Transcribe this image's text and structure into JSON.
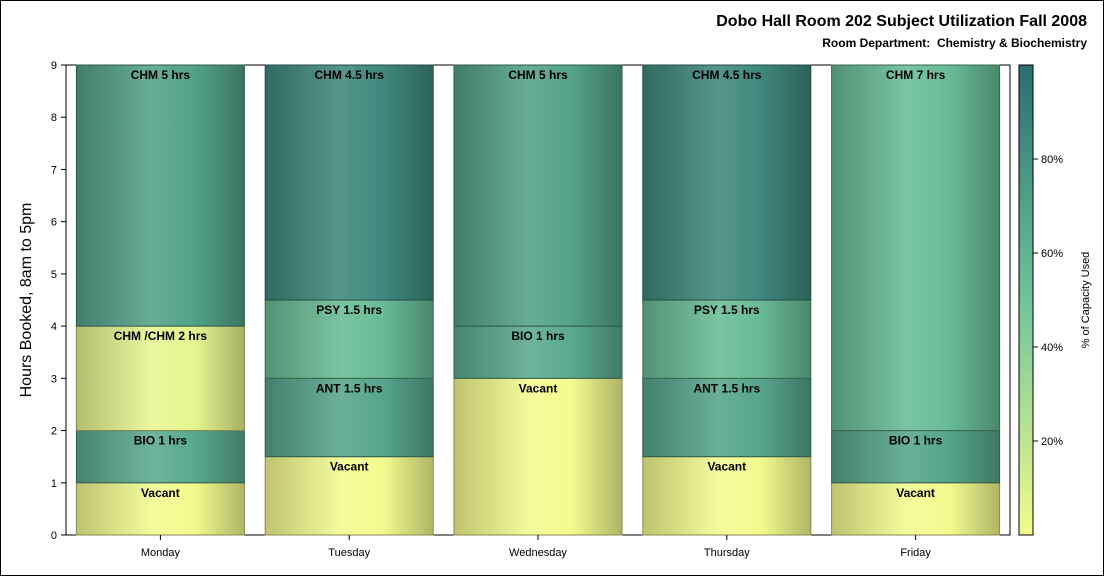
{
  "header": {
    "title": "Dobo Hall Room 202 Subject Utilization Fall 2008",
    "subtitle": "Room Department:  Chemistry & Biochemistry"
  },
  "chart_data": {
    "type": "bar",
    "stacked": true,
    "title": "Dobo Hall Room 202 Subject Utilization Fall 2008",
    "subtitle": "Room Department:  Chemistry & Biochemistry",
    "xlabel": "",
    "ylabel": "Hours Booked, 8am to 5pm",
    "ylim": [
      0,
      9
    ],
    "yticks": [
      0,
      1,
      2,
      3,
      4,
      5,
      6,
      7,
      8,
      9
    ],
    "categories": [
      "Monday",
      "Tuesday",
      "Wednesday",
      "Thursday",
      "Friday"
    ],
    "stacks": [
      {
        "day": "Monday",
        "segments": [
          {
            "label": "Vacant",
            "hours": 1,
            "capacity": 0
          },
          {
            "label": "BIO 1 hrs",
            "hours": 1,
            "capacity": 65
          },
          {
            "label": "CHM /CHM 2 hrs",
            "hours": 2,
            "capacity": 5
          },
          {
            "label": "CHM 5 hrs",
            "hours": 5,
            "capacity": 70
          }
        ]
      },
      {
        "day": "Tuesday",
        "segments": [
          {
            "label": "Vacant",
            "hours": 1.5,
            "capacity": 0
          },
          {
            "label": "ANT 1.5 hrs",
            "hours": 1.5,
            "capacity": 68
          },
          {
            "label": "PSY 1.5 hrs",
            "hours": 1.5,
            "capacity": 55
          },
          {
            "label": "CHM 4.5 hrs",
            "hours": 4.5,
            "capacity": 85
          }
        ]
      },
      {
        "day": "Wednesday",
        "segments": [
          {
            "label": "Vacant",
            "hours": 3,
            "capacity": 0
          },
          {
            "label": "BIO 1 hrs",
            "hours": 1,
            "capacity": 65
          },
          {
            "label": "CHM 5 hrs",
            "hours": 5,
            "capacity": 70
          }
        ]
      },
      {
        "day": "Thursday",
        "segments": [
          {
            "label": "Vacant",
            "hours": 1.5,
            "capacity": 0
          },
          {
            "label": "ANT 1.5 hrs",
            "hours": 1.5,
            "capacity": 68
          },
          {
            "label": "PSY 1.5 hrs",
            "hours": 1.5,
            "capacity": 55
          },
          {
            "label": "CHM 4.5 hrs",
            "hours": 4.5,
            "capacity": 85
          }
        ]
      },
      {
        "day": "Friday",
        "segments": [
          {
            "label": "Vacant",
            "hours": 1,
            "capacity": 0
          },
          {
            "label": "BIO 1 hrs",
            "hours": 1,
            "capacity": 68
          },
          {
            "label": "CHM 7 hrs",
            "hours": 7,
            "capacity": 55
          }
        ]
      }
    ],
    "colorbar": {
      "title": "% of Capacity Used",
      "range": [
        0,
        100
      ],
      "ticks": [
        20,
        40,
        60,
        80
      ],
      "tick_labels": [
        "20%",
        "40%",
        "60%",
        "80%"
      ],
      "low_color": "#f3fb8e",
      "mid_color": "#6fc49a",
      "high_color": "#2a6e70"
    },
    "grid": false,
    "legend": "right"
  }
}
